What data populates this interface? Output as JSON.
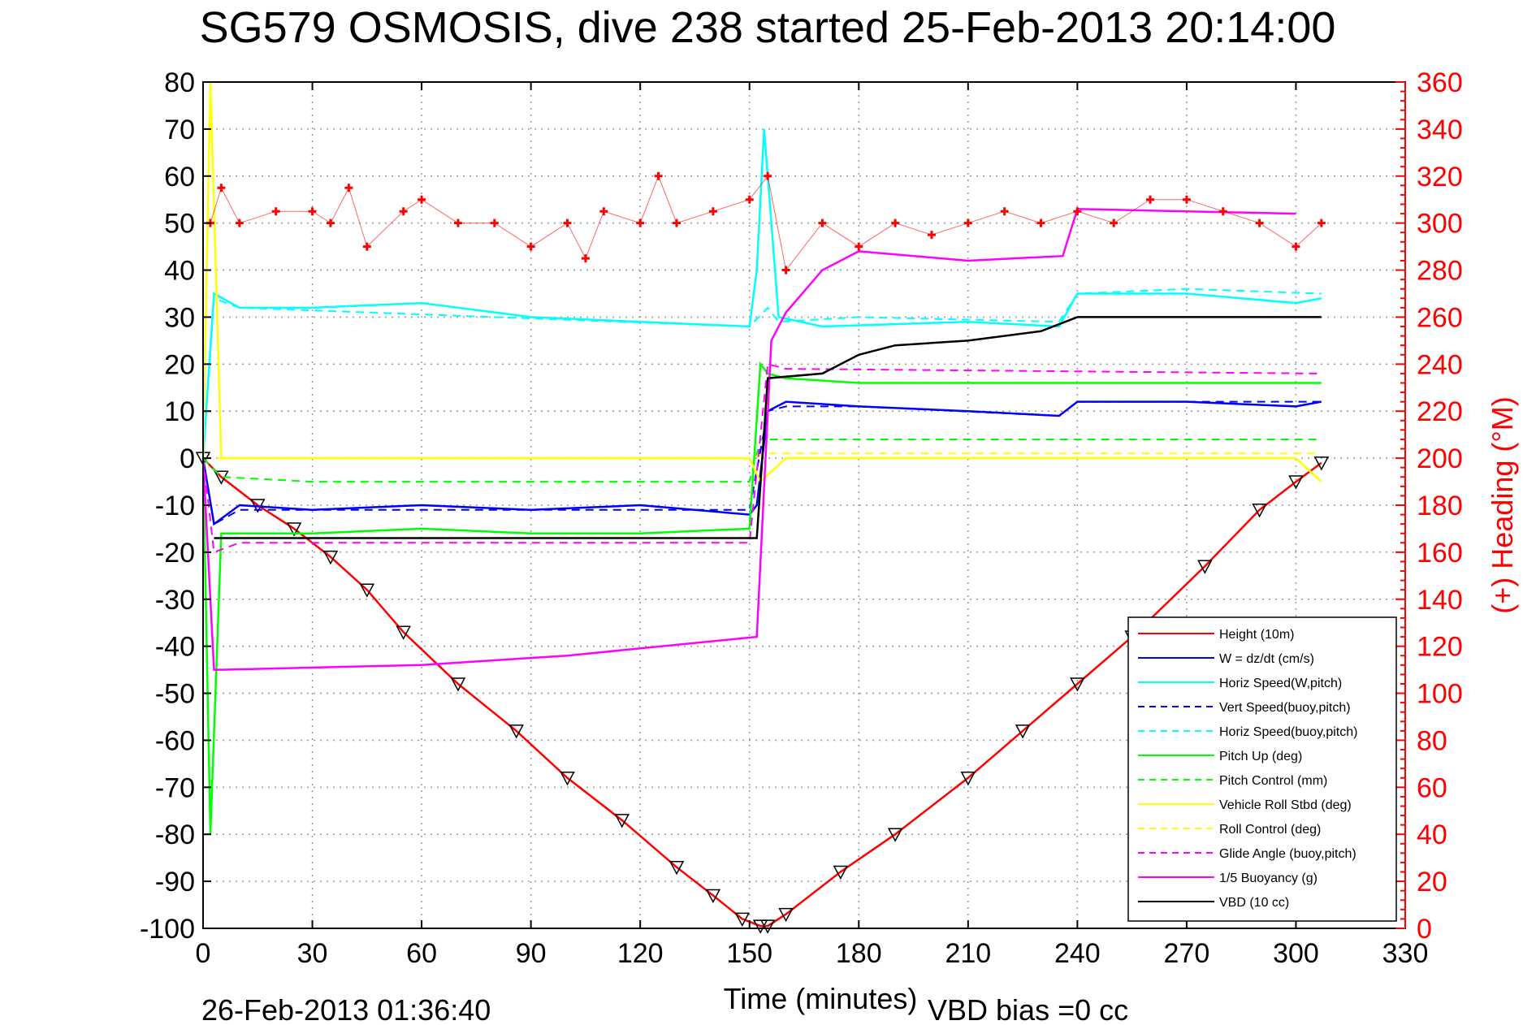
{
  "title": "SG579 OSMOSIS, dive 238 started 25-Feb-2013 20:14:00",
  "end_timestamp": "26-Feb-2013 01:36:40",
  "vbd_bias_label": "VBD bias =0 cc",
  "colors": {
    "height": "#ff0000",
    "w": "#0000ff",
    "horiz_speed": "#00ffff",
    "pitch": "#00ff00",
    "roll": "#ffff00",
    "buoyancy": "#ff00ff",
    "vbd": "#000000",
    "heading": "#ff0000"
  },
  "chart_data": {
    "type": "line",
    "title": "SG579 OSMOSIS, dive 238 started 25-Feb-2013 20:14:00",
    "xlabel": "Time (minutes)",
    "ylabel": "",
    "y2label": "(+) Heading (°M)",
    "xlim": [
      0,
      330
    ],
    "ylim": [
      -100,
      80
    ],
    "y2lim": [
      0,
      360
    ],
    "x_ticks": [
      "0",
      "30",
      "60",
      "90",
      "120",
      "150",
      "180",
      "210",
      "240",
      "270",
      "300",
      "330"
    ],
    "y_ticks": [
      "80",
      "70",
      "60",
      "50",
      "40",
      "30",
      "20",
      "10",
      "0",
      "-10",
      "-20",
      "-30",
      "-40",
      "-50",
      "-60",
      "-70",
      "-80",
      "-90",
      "-100"
    ],
    "y2_ticks": [
      "360",
      "340",
      "320",
      "300",
      "280",
      "260",
      "240",
      "220",
      "200",
      "180",
      "160",
      "140",
      "120",
      "100",
      "80",
      "60",
      "40",
      "20",
      "0"
    ],
    "grid": true,
    "legend_position": "bottom-right",
    "series": [
      {
        "name": "Height (10m)",
        "style": "solid",
        "color": "#ff0000",
        "x": [
          0,
          5,
          15,
          25,
          35,
          45,
          55,
          70,
          86,
          100,
          115,
          130,
          140,
          148,
          153,
          155,
          160,
          175,
          190,
          210,
          225,
          240,
          255,
          275,
          290,
          300,
          307
        ],
        "y": [
          0,
          -4,
          -10,
          -15,
          -21,
          -28,
          -37,
          -48,
          -58,
          -68,
          -77,
          -87,
          -93,
          -98,
          -99.5,
          -99.5,
          -97,
          -88,
          -80,
          -68,
          -58,
          -48,
          -38,
          -23,
          -11,
          -5,
          -1
        ]
      },
      {
        "name": "W = dz/dt (cm/s)",
        "style": "solid",
        "color": "#0000ff",
        "x": [
          0,
          3,
          10,
          30,
          60,
          90,
          120,
          150,
          152,
          155,
          160,
          180,
          210,
          235,
          240,
          270,
          300,
          307
        ],
        "y": [
          0,
          -14,
          -10,
          -11,
          -10,
          -11,
          -10,
          -12,
          -10,
          10,
          12,
          11,
          10,
          9,
          12,
          12,
          11,
          12
        ]
      },
      {
        "name": "Horiz Speed(W,pitch)",
        "style": "solid",
        "color": "#00ffff",
        "x": [
          0,
          3,
          10,
          30,
          60,
          90,
          120,
          150,
          152,
          154,
          158,
          170,
          210,
          235,
          240,
          270,
          300,
          307
        ],
        "y": [
          0,
          35,
          32,
          32,
          33,
          30,
          29,
          28,
          40,
          70,
          30,
          28,
          29,
          28,
          35,
          35,
          33,
          34
        ]
      },
      {
        "name": "Vert Speed(buoy,pitch)",
        "style": "dashed",
        "color": "#0000ff",
        "x": [
          0,
          3,
          10,
          150,
          155,
          160,
          180,
          235,
          240,
          307
        ],
        "y": [
          0,
          -14,
          -11,
          -11,
          10,
          11,
          11,
          9,
          12,
          12
        ]
      },
      {
        "name": "Horiz Speed(buoy,pitch)",
        "style": "dashed",
        "color": "#00ffff",
        "x": [
          0,
          3,
          10,
          150,
          155,
          158,
          180,
          235,
          240,
          270,
          307
        ],
        "y": [
          0,
          34,
          32,
          28,
          32,
          29,
          30,
          29,
          35,
          36,
          35
        ]
      },
      {
        "name": "Pitch Up (deg)",
        "style": "solid",
        "color": "#00ff00",
        "x": [
          0,
          2,
          5,
          30,
          60,
          90,
          120,
          150,
          153,
          155,
          160,
          180,
          210,
          240,
          270,
          307
        ],
        "y": [
          0,
          -80,
          -16,
          -16,
          -15,
          -16,
          -16,
          -15,
          20,
          18,
          17,
          16,
          16,
          16,
          16,
          16
        ]
      },
      {
        "name": "Pitch Control (mm)",
        "style": "dashed",
        "color": "#00ff00",
        "x": [
          0,
          5,
          30,
          150,
          153,
          160,
          307
        ],
        "y": [
          0,
          -4,
          -5,
          -5,
          4,
          4,
          4
        ]
      },
      {
        "name": "Vehicle Roll Stbd (deg)",
        "style": "solid",
        "color": "#ffff00",
        "x": [
          0,
          2,
          5,
          30,
          60,
          90,
          120,
          150,
          153,
          160,
          180,
          210,
          240,
          270,
          300,
          307
        ],
        "y": [
          0,
          80,
          0,
          0,
          0,
          0,
          0,
          0,
          -5,
          0,
          0,
          0,
          0,
          0,
          0,
          -5
        ]
      },
      {
        "name": "Roll Control (deg)",
        "style": "dashed",
        "color": "#ffff00",
        "x": [
          0,
          5,
          150,
          155,
          307
        ],
        "y": [
          0,
          0,
          0,
          1,
          1
        ]
      },
      {
        "name": "Glide Angle (buoy,pitch)",
        "style": "dashed",
        "color": "#ff00ff",
        "x": [
          0,
          3,
          10,
          150,
          155,
          160,
          307
        ],
        "y": [
          0,
          -20,
          -18,
          -18,
          20,
          19,
          18
        ]
      },
      {
        "name": "1/5 Buoyancy (g)",
        "style": "solid",
        "color": "#ff00ff",
        "x": [
          0,
          3,
          5,
          60,
          100,
          152,
          156,
          160,
          170,
          180,
          210,
          236,
          240,
          300
        ],
        "y": [
          0,
          -45,
          -45,
          -44,
          -42,
          -38,
          25,
          31,
          40,
          44,
          42,
          43,
          53,
          52
        ]
      },
      {
        "name": "VBD (10 cc)",
        "style": "solid",
        "color": "#000000",
        "x": [
          3,
          152,
          155,
          170,
          180,
          190,
          210,
          230,
          240,
          307
        ],
        "y": [
          -17,
          -17,
          17,
          18,
          22,
          24,
          25,
          27,
          30,
          30
        ]
      },
      {
        "name": "Heading",
        "style": "marker",
        "color": "#ff0000",
        "axis": "right",
        "x": [
          2,
          5,
          10,
          20,
          30,
          35,
          40,
          45,
          55,
          60,
          70,
          80,
          90,
          100,
          105,
          110,
          120,
          125,
          130,
          140,
          150,
          155,
          160,
          170,
          180,
          190,
          200,
          210,
          220,
          230,
          240,
          250,
          260,
          270,
          280,
          290,
          300,
          307
        ],
        "y": [
          300,
          315,
          300,
          305,
          305,
          300,
          315,
          290,
          305,
          310,
          300,
          300,
          290,
          300,
          285,
          305,
          300,
          320,
          300,
          305,
          310,
          320,
          280,
          300,
          290,
          300,
          295,
          300,
          305,
          300,
          305,
          300,
          310,
          310,
          305,
          300,
          290,
          300
        ]
      }
    ]
  }
}
